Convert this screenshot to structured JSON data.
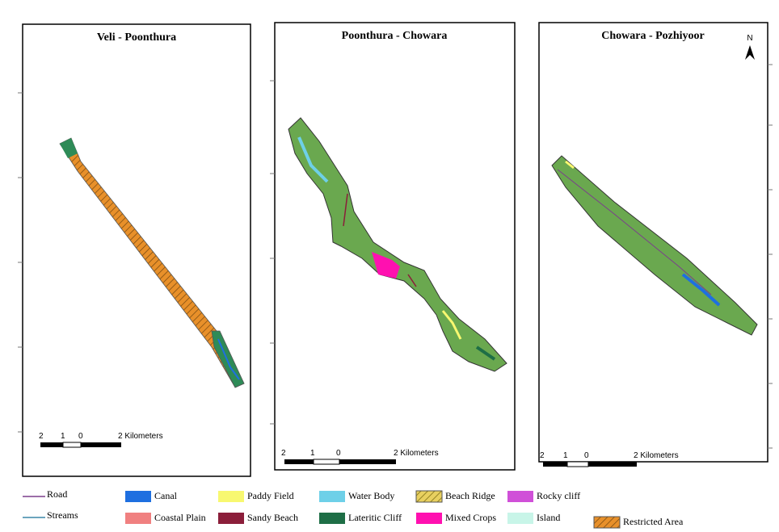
{
  "panels": [
    {
      "title": "Veli - Poonthura",
      "scale_bar": [
        "2",
        "1",
        "0",
        "2 Kilometers"
      ]
    },
    {
      "title": "Poonthura - Chowara",
      "scale_bar": [
        "2",
        "1",
        "0",
        "2 Kilometers"
      ]
    },
    {
      "title": "Chowara - Pozhiyoor",
      "scale_bar": [
        "2",
        "1",
        "0",
        "2 Kilometers"
      ]
    }
  ],
  "north_arrow": "N",
  "legend": [
    {
      "label": "Road",
      "color": "#7b3f8c",
      "kind": "line"
    },
    {
      "label": "Streams",
      "color": "#3a86a8",
      "kind": "line"
    },
    {
      "label": "Canal",
      "color": "#1e6fe0",
      "kind": "box"
    },
    {
      "label": "Coastal Plain",
      "color": "#f08080",
      "kind": "box"
    },
    {
      "label": "Paddy Field",
      "color": "#f8f870",
      "kind": "box"
    },
    {
      "label": "Sandy Beach",
      "color": "#8b1e3a",
      "kind": "box"
    },
    {
      "label": "Water Body",
      "color": "#6ed0e8",
      "kind": "box"
    },
    {
      "label": "Lateritic Cliff",
      "color": "#1e6e46",
      "kind": "box"
    },
    {
      "label": "Beach Ridge",
      "color": "#e8d060",
      "kind": "hatch"
    },
    {
      "label": "Mixed Crops",
      "color": "#ff10b0",
      "kind": "box"
    },
    {
      "label": "Rocky cliff",
      "color": "#d050d8",
      "kind": "box"
    },
    {
      "label": "Island",
      "color": "#c8f5e8",
      "kind": "box"
    },
    {
      "label": "Restricted Area",
      "color": "#e8902a",
      "kind": "hatch"
    }
  ]
}
